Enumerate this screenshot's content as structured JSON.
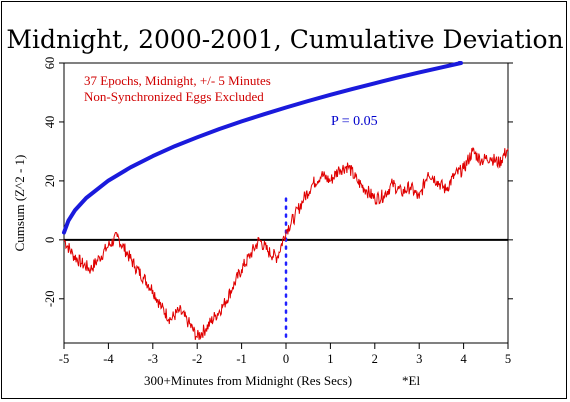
{
  "chart_data": {
    "type": "line",
    "title": "Midnight, 2000-2001, Cumulative Deviation",
    "annotations": [
      "37 Epochs, Midnight, +/- 5 Minutes",
      "Non-Synchronized Eggs Excluded"
    ],
    "p_label": "P = 0.05",
    "xlabel": "300+Minutes from Midnight (Res Secs)",
    "xlabel_note": "*El",
    "ylabel": "Cumsum (Z^2 - 1)",
    "xlim": [
      -5,
      5
    ],
    "ylim": [
      -35,
      60
    ],
    "x_ticks": [
      -5,
      -4,
      -3,
      -2,
      -1,
      0,
      1,
      2,
      3,
      4,
      5
    ],
    "y_ticks": [
      -20,
      0,
      20,
      40,
      60
    ],
    "colors": {
      "cumsum": "#e00000",
      "p_envelope": "#1a1adc",
      "marker": "#2020ff",
      "axis": "#000000"
    },
    "vertical_marker_x": 0,
    "series": [
      {
        "style": "jagged",
        "x": [
          -5.0,
          -4.8,
          -4.6,
          -4.4,
          -4.2,
          -4.0,
          -3.8,
          -3.6,
          -3.4,
          -3.2,
          -3.0,
          -2.8,
          -2.6,
          -2.4,
          -2.2,
          -2.0,
          -1.8,
          -1.6,
          -1.4,
          -1.2,
          -1.0,
          -0.8,
          -0.6,
          -0.4,
          -0.2,
          0.0,
          0.2,
          0.4,
          0.6,
          0.8,
          1.0,
          1.2,
          1.4,
          1.6,
          1.8,
          2.0,
          2.2,
          2.4,
          2.6,
          2.8,
          3.0,
          3.2,
          3.4,
          3.6,
          3.8,
          4.0,
          4.2,
          4.4,
          4.6,
          4.8,
          5.0
        ],
        "y": [
          0,
          -5,
          -8,
          -10,
          -6,
          -2,
          1,
          -4,
          -9,
          -13,
          -17,
          -23,
          -27,
          -24,
          -28,
          -33,
          -30,
          -26,
          -22,
          -16,
          -10,
          -5,
          0,
          -4,
          -6,
          3,
          8,
          14,
          19,
          22,
          20,
          24,
          25,
          20,
          17,
          14,
          15,
          19,
          16,
          18,
          14,
          23,
          20,
          17,
          22,
          24,
          30,
          27,
          28,
          26,
          31
        ]
      },
      {
        "style": "smooth",
        "x": [
          -5.0,
          -4.9,
          -4.75,
          -4.5,
          -4.0,
          -3.5,
          -3.0,
          -2.5,
          -2.0,
          -1.5,
          -1.0,
          -0.5,
          0.0,
          0.5,
          1.0,
          1.5,
          2.0,
          2.5,
          3.0,
          3.5,
          4.0,
          4.5,
          5.0
        ],
        "y": [
          2.5,
          6.5,
          10.1,
          14.2,
          20.1,
          24.6,
          28.4,
          31.8,
          34.8,
          37.6,
          40.2,
          42.6,
          44.9,
          47.1,
          49.2,
          51.2,
          53.1,
          55.0,
          56.8,
          58.5,
          60.2,
          61.9,
          63.5
        ]
      }
    ]
  }
}
